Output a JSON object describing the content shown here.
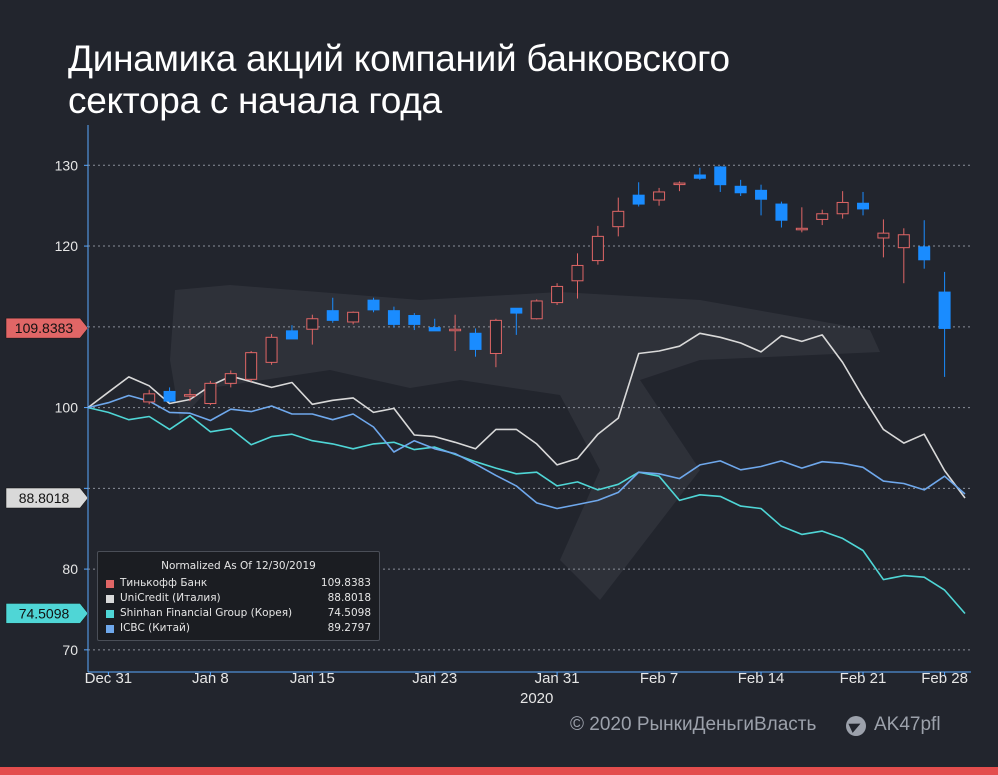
{
  "title": {
    "line1": "Динамика акций компаний банковского",
    "line2": "сектора с начала года"
  },
  "footer": {
    "credit": "© 2020  РынкиДеньгиВласть",
    "handle": "AK47pfl"
  },
  "colors": {
    "background": "#22252d",
    "accent_bar": "#e34d4d",
    "up_candle": "#e06666",
    "down_candle": "#1a8cff",
    "unicredit": "#d9d9d9",
    "shinhan": "#4fd6d6",
    "icbc": "#6fa8ec"
  },
  "chart_data": {
    "type": "line",
    "normalized_as_of": "12/30/2019",
    "ylim": [
      68,
      134
    ],
    "yticks": [
      70,
      80,
      90,
      100,
      110,
      120,
      130
    ],
    "ytick_labels": [
      "70",
      "80",
      "",
      "100",
      "",
      "120",
      "130"
    ],
    "x_labels": [
      {
        "index": 1,
        "label": "Dec 31"
      },
      {
        "index": 6,
        "label": "Jan 8"
      },
      {
        "index": 11,
        "label": "Jan 15"
      },
      {
        "index": 17,
        "label": "Jan 23"
      },
      {
        "index": 23,
        "label": "Jan 31"
      },
      {
        "index": 28,
        "label": "Feb 7"
      },
      {
        "index": 33,
        "label": "Feb 14"
      },
      {
        "index": 38,
        "label": "Feb 21"
      },
      {
        "index": 42,
        "label": "Feb 28"
      }
    ],
    "year_label": "2020",
    "num_points": 44,
    "grid": true,
    "legend": {
      "title": "Normalized As Of 12/30/2019",
      "entries": [
        {
          "name": "Тинькофф Банк",
          "value": "109.8383",
          "color": "#e06666"
        },
        {
          "name": "UniCredit (Италия)",
          "value": "88.8018",
          "color": "#d9d9d9"
        },
        {
          "name": "Shinhan Financial Group (Корея)",
          "value": "74.5098",
          "color": "#4fd6d6"
        },
        {
          "name": "ICBC (Китай)",
          "value": "89.2797",
          "color": "#6fa8ec"
        }
      ]
    },
    "last_value_tags": [
      {
        "label": "109.8383",
        "value": 109.8383,
        "bg": "#e06666",
        "fg": "#111111"
      },
      {
        "label": "88.8018",
        "value": 88.8018,
        "bg": "#d9d9d9",
        "fg": "#111111"
      },
      {
        "label": "74.5098",
        "value": 74.5098,
        "bg": "#4fd6d6",
        "fg": "#111111"
      }
    ],
    "candles": {
      "name": "Тинькофф Банк",
      "start_index": 3,
      "ohlc": [
        [
          100.7,
          102.2,
          100.4,
          101.7
        ],
        [
          102.0,
          102.5,
          100.6,
          100.8
        ],
        [
          101.5,
          102.3,
          100.8,
          101.6
        ],
        [
          100.5,
          103.3,
          100.3,
          103.0
        ],
        [
          103.0,
          104.6,
          102.5,
          104.2
        ],
        [
          103.5,
          107.0,
          103.2,
          106.8
        ],
        [
          105.6,
          109.1,
          105.3,
          108.7
        ],
        [
          109.5,
          110.2,
          108.5,
          108.5
        ],
        [
          109.7,
          111.5,
          107.8,
          111.0
        ],
        [
          112.0,
          113.6,
          110.5,
          110.8
        ],
        [
          110.6,
          111.9,
          110.3,
          111.8
        ],
        [
          113.3,
          113.6,
          111.8,
          112.1
        ],
        [
          112.0,
          112.5,
          109.9,
          110.3
        ],
        [
          111.4,
          111.7,
          109.6,
          110.3
        ],
        [
          109.9,
          111.0,
          109.5,
          109.5
        ],
        [
          109.7,
          111.5,
          107.0,
          109.7
        ],
        [
          109.2,
          109.8,
          106.3,
          107.2
        ],
        [
          106.7,
          111.0,
          105.0,
          110.8
        ],
        [
          112.3,
          112.3,
          109.0,
          111.7
        ],
        [
          111.0,
          113.4,
          110.9,
          113.2
        ],
        [
          113.0,
          115.4,
          112.7,
          115.0
        ],
        [
          115.7,
          119.1,
          113.5,
          117.6
        ],
        [
          118.2,
          122.5,
          117.7,
          121.2
        ],
        [
          122.4,
          126.0,
          121.2,
          124.3
        ],
        [
          126.3,
          127.9,
          124.9,
          125.2
        ],
        [
          125.7,
          127.2,
          125.0,
          126.7
        ],
        [
          127.8,
          128.0,
          126.8,
          127.8
        ],
        [
          128.8,
          129.7,
          128.2,
          128.4
        ],
        [
          129.8,
          129.9,
          126.7,
          127.6
        ],
        [
          127.4,
          128.2,
          126.2,
          126.6
        ],
        [
          126.9,
          127.6,
          123.8,
          125.8
        ],
        [
          125.2,
          125.5,
          122.3,
          123.2
        ],
        [
          122.2,
          124.8,
          121.7,
          122.2
        ],
        [
          123.3,
          124.5,
          122.6,
          124.0
        ],
        [
          124.0,
          126.8,
          123.4,
          125.4
        ],
        [
          125.3,
          126.7,
          123.8,
          124.6
        ],
        [
          121.0,
          123.3,
          118.6,
          121.6
        ],
        [
          119.8,
          122.2,
          115.4,
          121.4
        ],
        [
          119.9,
          123.2,
          117.2,
          118.3
        ],
        [
          114.3,
          116.8,
          103.8,
          109.8
        ]
      ]
    },
    "series": [
      {
        "name": "UniCredit (Италия)",
        "values": [
          100.0,
          101.9,
          103.8,
          102.7,
          100.5,
          101.0,
          102.7,
          103.9,
          103.2,
          102.5,
          103.1,
          100.4,
          100.9,
          101.2,
          99.4,
          99.9,
          96.6,
          96.4,
          95.7,
          94.9,
          97.3,
          97.3,
          95.5,
          92.9,
          93.7,
          96.7,
          98.7,
          106.7,
          107.0,
          107.6,
          109.2,
          108.7,
          108.0,
          106.9,
          108.9,
          108.2,
          109.0,
          105.6,
          101.3,
          97.3,
          95.6,
          96.7,
          92.2,
          88.8
        ]
      },
      {
        "name": "Shinhan Financial Group (Корея)",
        "values": [
          100.0,
          99.4,
          98.5,
          98.9,
          97.3,
          99.0,
          97.0,
          97.4,
          95.4,
          96.4,
          96.7,
          95.9,
          95.5,
          94.9,
          95.5,
          95.7,
          94.8,
          95.1,
          94.2,
          93.3,
          92.5,
          91.8,
          92.0,
          90.3,
          90.8,
          89.8,
          90.5,
          92.0,
          91.5,
          88.5,
          89.2,
          89.0,
          87.8,
          87.5,
          85.3,
          84.3,
          84.7,
          83.8,
          82.3,
          78.7,
          79.2,
          79.0,
          77.4,
          74.5
        ]
      },
      {
        "name": "ICBC (Китай)",
        "values": [
          100.0,
          100.6,
          101.5,
          100.8,
          99.4,
          99.3,
          98.4,
          99.8,
          99.5,
          100.2,
          99.2,
          99.2,
          98.5,
          99.2,
          97.6,
          94.5,
          95.9,
          94.9,
          94.3,
          93.0,
          91.6,
          90.3,
          88.2,
          87.5,
          88.0,
          88.5,
          89.5,
          92.0,
          91.8,
          91.2,
          92.9,
          93.4,
          92.3,
          92.7,
          93.4,
          92.5,
          93.3,
          93.1,
          92.6,
          90.9,
          90.6,
          89.8,
          91.5,
          89.3
        ]
      }
    ]
  }
}
